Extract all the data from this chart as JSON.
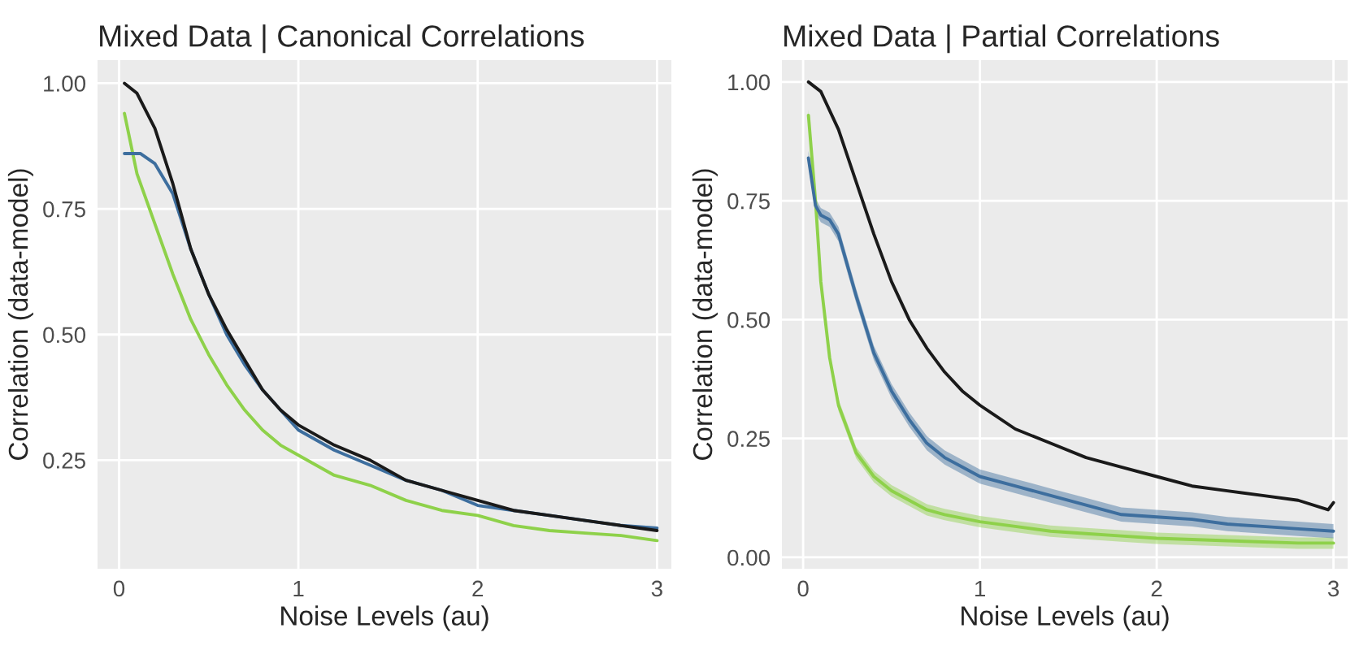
{
  "chart_data": [
    {
      "type": "line",
      "title": "Mixed Data | Canonical Correlations",
      "xlabel": "Noise Levels (au)",
      "ylabel": "Correlation (data-model)",
      "xlim": [
        -0.12,
        3.08
      ],
      "xticks": [
        0,
        1,
        2,
        3
      ],
      "ylim": [
        0.034,
        1.046
      ],
      "yticks": [
        {
          "value": 0.25,
          "label": "0.25"
        },
        {
          "value": 0.5,
          "label": "0.50"
        },
        {
          "value": 0.75,
          "label": "0.75"
        },
        {
          "value": 1.0,
          "label": "1.00"
        }
      ],
      "grid": true,
      "legend": false,
      "series": [
        {
          "color": "#8ed14a",
          "x": [
            0.03,
            0.1,
            0.2,
            0.3,
            0.4,
            0.5,
            0.6,
            0.7,
            0.8,
            0.9,
            1.0,
            1.2,
            1.4,
            1.6,
            1.8,
            2.0,
            2.2,
            2.4,
            2.6,
            2.8,
            3.0
          ],
          "values": [
            0.94,
            0.82,
            0.72,
            0.62,
            0.53,
            0.46,
            0.4,
            0.35,
            0.31,
            0.28,
            0.26,
            0.22,
            0.2,
            0.17,
            0.15,
            0.14,
            0.12,
            0.11,
            0.105,
            0.1,
            0.09
          ]
        },
        {
          "color": "#3d6e9e",
          "x": [
            0.03,
            0.12,
            0.2,
            0.3,
            0.4,
            0.5,
            0.6,
            0.7,
            0.8,
            0.9,
            1.0,
            1.2,
            1.4,
            1.6,
            1.8,
            2.0,
            2.2,
            2.4,
            2.6,
            2.8,
            3.0
          ],
          "values": [
            0.86,
            0.86,
            0.84,
            0.78,
            0.67,
            0.58,
            0.5,
            0.44,
            0.39,
            0.35,
            0.31,
            0.27,
            0.24,
            0.21,
            0.19,
            0.16,
            0.15,
            0.14,
            0.13,
            0.12,
            0.115
          ]
        },
        {
          "color": "#1a1a1a",
          "x": [
            0.03,
            0.1,
            0.2,
            0.3,
            0.4,
            0.5,
            0.6,
            0.7,
            0.8,
            0.9,
            1.0,
            1.2,
            1.4,
            1.6,
            1.8,
            2.0,
            2.2,
            2.4,
            2.6,
            2.8,
            3.0
          ],
          "values": [
            1.0,
            0.98,
            0.91,
            0.8,
            0.67,
            0.58,
            0.51,
            0.45,
            0.39,
            0.35,
            0.32,
            0.28,
            0.25,
            0.21,
            0.19,
            0.17,
            0.15,
            0.14,
            0.13,
            0.12,
            0.11
          ]
        }
      ]
    },
    {
      "type": "line",
      "title": "Mixed Data | Partial Correlations",
      "xlabel": "Noise Levels (au)",
      "ylabel": "Correlation (data-model)",
      "xlim": [
        -0.12,
        3.08
      ],
      "xticks": [
        0,
        1,
        2,
        3
      ],
      "ylim": [
        -0.024,
        1.046
      ],
      "yticks": [
        {
          "value": 0.0,
          "label": "0.00"
        },
        {
          "value": 0.25,
          "label": "0.25"
        },
        {
          "value": 0.5,
          "label": "0.50"
        },
        {
          "value": 0.75,
          "label": "0.75"
        },
        {
          "value": 1.0,
          "label": "1.00"
        }
      ],
      "grid": true,
      "legend": false,
      "series": [
        {
          "color": "#8ed14a",
          "x": [
            0.03,
            0.07,
            0.1,
            0.15,
            0.2,
            0.3,
            0.4,
            0.5,
            0.6,
            0.7,
            0.8,
            1.0,
            1.2,
            1.4,
            1.6,
            1.8,
            2.0,
            2.4,
            2.8,
            3.0
          ],
          "values": [
            0.93,
            0.75,
            0.58,
            0.42,
            0.32,
            0.22,
            0.17,
            0.14,
            0.12,
            0.1,
            0.09,
            0.075,
            0.065,
            0.055,
            0.05,
            0.045,
            0.04,
            0.035,
            0.03,
            0.03
          ],
          "lower": [
            0.918,
            0.738,
            0.568,
            0.408,
            0.308,
            0.208,
            0.158,
            0.128,
            0.108,
            0.088,
            0.078,
            0.063,
            0.053,
            0.043,
            0.038,
            0.033,
            0.028,
            0.023,
            0.018,
            0.018
          ],
          "upper": [
            0.942,
            0.762,
            0.592,
            0.432,
            0.332,
            0.232,
            0.182,
            0.152,
            0.132,
            0.112,
            0.102,
            0.087,
            0.077,
            0.067,
            0.062,
            0.057,
            0.052,
            0.047,
            0.042,
            0.042
          ]
        },
        {
          "color": "#3d6e9e",
          "x": [
            0.03,
            0.07,
            0.1,
            0.15,
            0.2,
            0.3,
            0.4,
            0.5,
            0.6,
            0.7,
            0.8,
            0.9,
            1.0,
            1.2,
            1.4,
            1.6,
            1.8,
            2.0,
            2.2,
            2.4,
            2.6,
            2.8,
            3.0
          ],
          "values": [
            0.84,
            0.74,
            0.72,
            0.71,
            0.68,
            0.55,
            0.43,
            0.35,
            0.29,
            0.24,
            0.21,
            0.19,
            0.17,
            0.15,
            0.13,
            0.11,
            0.09,
            0.085,
            0.08,
            0.07,
            0.065,
            0.06,
            0.055
          ],
          "lower": [
            0.825,
            0.725,
            0.705,
            0.695,
            0.665,
            0.535,
            0.415,
            0.335,
            0.275,
            0.225,
            0.195,
            0.175,
            0.155,
            0.135,
            0.115,
            0.095,
            0.075,
            0.07,
            0.065,
            0.055,
            0.05,
            0.045,
            0.04
          ],
          "upper": [
            0.855,
            0.755,
            0.735,
            0.725,
            0.695,
            0.565,
            0.445,
            0.365,
            0.305,
            0.255,
            0.225,
            0.205,
            0.185,
            0.165,
            0.145,
            0.125,
            0.105,
            0.1,
            0.095,
            0.085,
            0.08,
            0.075,
            0.07
          ]
        },
        {
          "color": "#1a1a1a",
          "x": [
            0.03,
            0.1,
            0.2,
            0.3,
            0.4,
            0.5,
            0.6,
            0.7,
            0.8,
            0.9,
            1.0,
            1.2,
            1.4,
            1.6,
            1.8,
            2.0,
            2.2,
            2.4,
            2.6,
            2.8,
            2.97,
            3.0
          ],
          "values": [
            1.0,
            0.98,
            0.9,
            0.79,
            0.68,
            0.58,
            0.5,
            0.44,
            0.39,
            0.35,
            0.32,
            0.27,
            0.24,
            0.21,
            0.19,
            0.17,
            0.15,
            0.14,
            0.13,
            0.12,
            0.1,
            0.115
          ]
        }
      ]
    }
  ]
}
